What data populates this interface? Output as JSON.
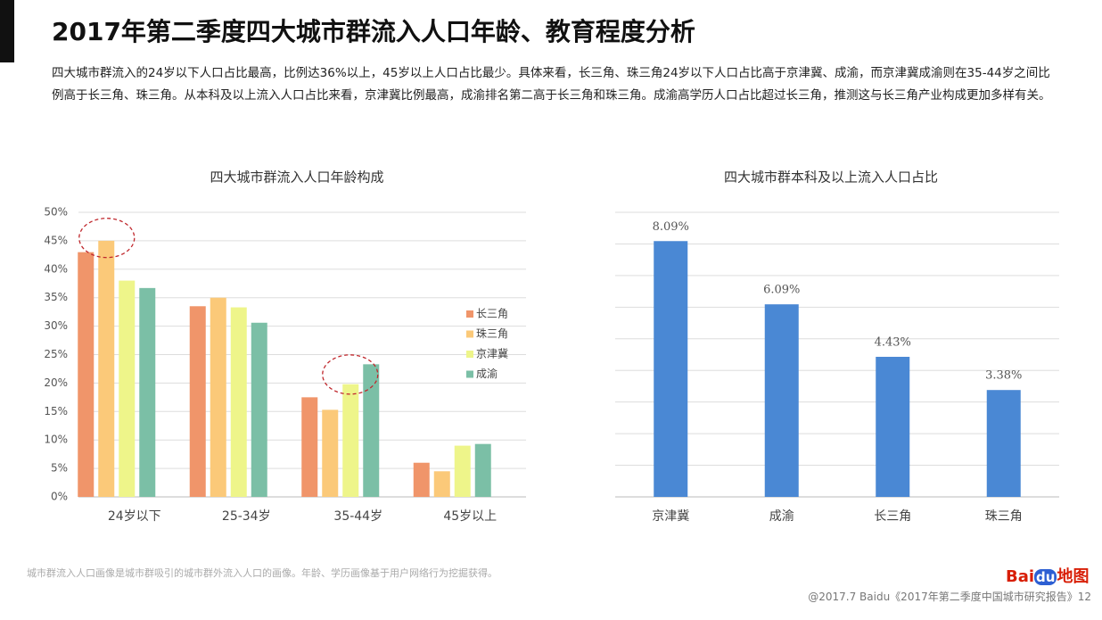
{
  "header": {
    "title": "2017年第二季度四大城市群流入人口年龄、教育程度分析",
    "text": "四大城市群流入的24岁以下人口占比最高，比例达36%以上，45岁以上人口占比最少。具体来看，长三角、珠三角24岁以下人口占比高于京津冀、成渝，而京津冀成渝则在35-44岁之间比例高于长三角、珠三角。从本科及以上流入人口占比来看，京津冀比例最高，成渝排名第二高于长三角和珠三角。成渝高学历人口占比超过长三角，推测这与长三角产业构成更加多样有关。"
  },
  "chart_data": [
    {
      "type": "grouped-bar",
      "title": "四大城市群流入人口年龄构成",
      "categories": [
        "24岁以下",
        "25-34岁",
        "35-44岁",
        "45岁以上"
      ],
      "series": [
        {
          "name": "长三角",
          "color": "#f0956a",
          "values": [
            43,
            33.5,
            17.5,
            6
          ]
        },
        {
          "name": "珠三角",
          "color": "#fbc979",
          "values": [
            45,
            35,
            15.3,
            4.5
          ]
        },
        {
          "name": "京津冀",
          "color": "#eef58a",
          "values": [
            38,
            33.3,
            19.8,
            9
          ]
        },
        {
          "name": "成渝",
          "color": "#7bbfa6",
          "values": [
            36.7,
            30.6,
            23.3,
            9.3
          ]
        }
      ],
      "ylim": [
        0,
        50
      ],
      "yticks": [
        {
          "value": 0,
          "label": "0%"
        },
        {
          "value": 5,
          "label": "5%"
        },
        {
          "value": 10,
          "label": "10%"
        },
        {
          "value": 15,
          "label": "15%"
        },
        {
          "value": 20,
          "label": "20%"
        },
        {
          "value": 25,
          "label": "25%"
        },
        {
          "value": 30,
          "label": "30%"
        },
        {
          "value": 35,
          "label": "35%"
        },
        {
          "value": 40,
          "label": "40%"
        },
        {
          "value": 45,
          "label": "45%"
        },
        {
          "value": 50,
          "label": "50%"
        }
      ],
      "grid": true,
      "legend": "right"
    },
    {
      "type": "bar",
      "title": "四大城市群本科及以上流入人口占比",
      "categories": [
        "京津冀",
        "成渝",
        "长三角",
        "珠三角"
      ],
      "values": [
        8.09,
        6.09,
        4.43,
        3.38
      ],
      "value_labels": [
        "8.09%",
        "6.09%",
        "4.43%",
        "3.38%"
      ],
      "color": "#4a88d4",
      "ylim": [
        0,
        9
      ],
      "yticks": [
        0,
        1,
        2,
        3,
        4,
        5,
        6,
        7,
        8,
        9
      ],
      "grid": true
    }
  ],
  "note": "城市群流入人口画像是城市群吸引的城市群外流入人口的画像。年龄、学历画像基于用户网络行为挖掘获得。",
  "footer": "@2017.7 Baidu《2017年第二季度中国城市研究报告》12",
  "logo": [
    "Bai",
    "du",
    "地图"
  ]
}
